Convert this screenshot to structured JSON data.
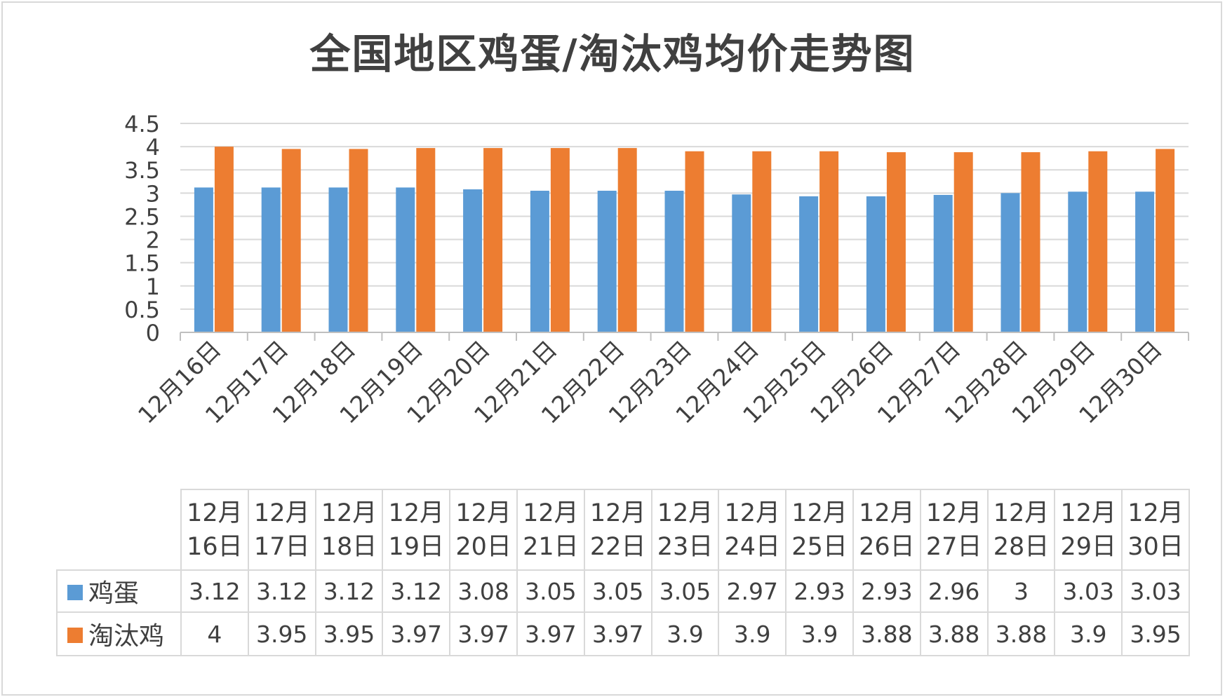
{
  "chart_data": {
    "type": "bar",
    "title": "全国地区鸡蛋/淘汰鸡均价走势图",
    "categories": [
      "12月16日",
      "12月17日",
      "12月18日",
      "12月19日",
      "12月20日",
      "12月21日",
      "12月22日",
      "12月23日",
      "12月24日",
      "12月25日",
      "12月26日",
      "12月27日",
      "12月28日",
      "12月29日",
      "12月30日"
    ],
    "table_headers": [
      [
        "12月",
        "16日"
      ],
      [
        "12月",
        "17日"
      ],
      [
        "12月",
        "18日"
      ],
      [
        "12月",
        "19日"
      ],
      [
        "12月",
        "20日"
      ],
      [
        "12月",
        "21日"
      ],
      [
        "12月",
        "22日"
      ],
      [
        "12月",
        "23日"
      ],
      [
        "12月",
        "24日"
      ],
      [
        "12月",
        "25日"
      ],
      [
        "12月",
        "26日"
      ],
      [
        "12月",
        "27日"
      ],
      [
        "12月",
        "28日"
      ],
      [
        "12月",
        "29日"
      ],
      [
        "12月",
        "30日"
      ]
    ],
    "series": [
      {
        "name": "鸡蛋",
        "color": "#5b9bd5",
        "values": [
          3.12,
          3.12,
          3.12,
          3.12,
          3.08,
          3.05,
          3.05,
          3.05,
          2.97,
          2.93,
          2.93,
          2.96,
          3,
          3.03,
          3.03
        ]
      },
      {
        "name": "淘汰鸡",
        "color": "#ed7d31",
        "values": [
          4,
          3.95,
          3.95,
          3.97,
          3.97,
          3.97,
          3.97,
          3.9,
          3.9,
          3.9,
          3.88,
          3.88,
          3.88,
          3.9,
          3.95
        ]
      }
    ],
    "yticks": [
      "0",
      "0.5",
      "1",
      "1.5",
      "2",
      "2.5",
      "3",
      "3.5",
      "4",
      "4.5"
    ],
    "ylim": [
      0,
      4.5
    ],
    "grid": true,
    "legend": "data-table"
  }
}
